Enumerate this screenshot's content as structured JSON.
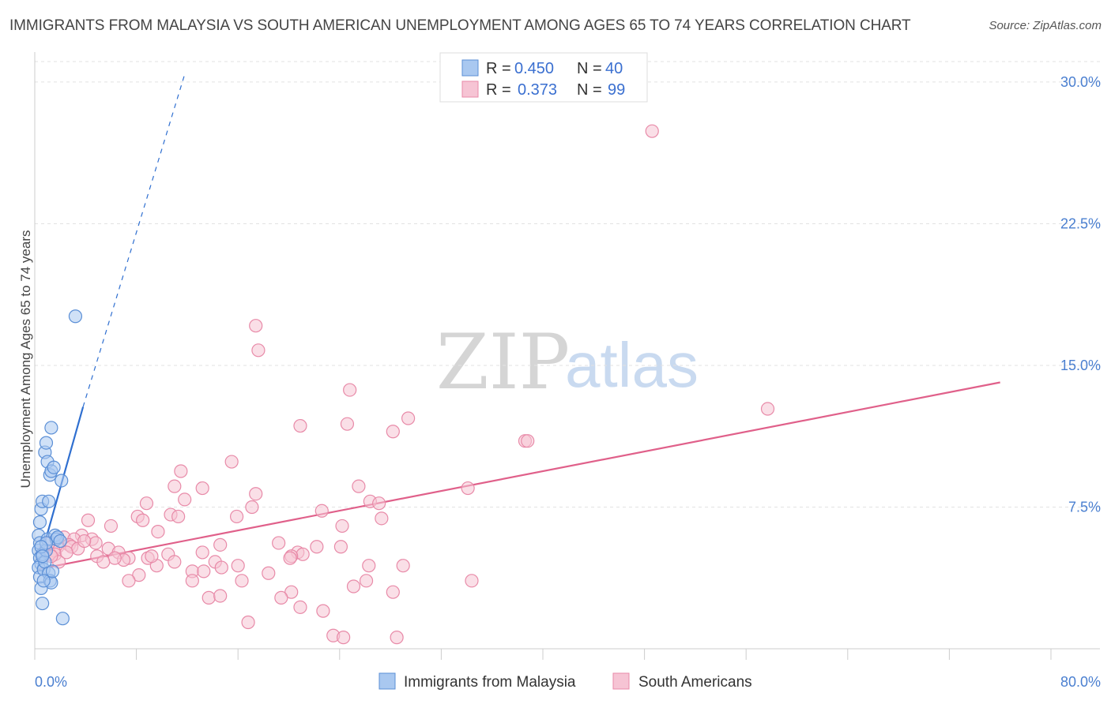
{
  "header": {
    "title": "IMMIGRANTS FROM MALAYSIA VS SOUTH AMERICAN UNEMPLOYMENT AMONG AGES 65 TO 74 YEARS CORRELATION CHART",
    "source": "Source: ZipAtlas.com"
  },
  "watermark": {
    "zip": "ZIP",
    "atlas": "atlas"
  },
  "legend": {
    "rows": [
      {
        "r_label": "R =",
        "r_value": "0.450",
        "n_label": "N =",
        "n_value": "40"
      },
      {
        "r_label": "R =",
        "r_value": "0.373",
        "n_label": "N =",
        "n_value": "99"
      }
    ]
  },
  "bottom_legend": {
    "items": [
      "Immigrants from Malaysia",
      "South Americans"
    ]
  },
  "colors": {
    "malaysia_fill": "#a9c8f0",
    "malaysia_stroke": "#5b8fd6",
    "malaysia_line": "#2f6fd0",
    "south_fill": "#f6c4d4",
    "south_stroke": "#e88aa8",
    "south_line": "#e0608a",
    "tick_color": "#4a7fd0",
    "grid": "#e2e2e2"
  },
  "chart_data": {
    "type": "scatter",
    "title": "IMMIGRANTS FROM MALAYSIA VS SOUTH AMERICAN UNEMPLOYMENT AMONG AGES 65 TO 74 YEARS CORRELATION CHART",
    "xlabel": "",
    "ylabel": "Unemployment Among Ages 65 to 74 years",
    "xlim": [
      0,
      80
    ],
    "ylim": [
      0,
      31
    ],
    "x_tick_labels": [
      "0.0%",
      "80.0%"
    ],
    "y_ticks": [
      7.5,
      15.0,
      22.5,
      30.0
    ],
    "y_tick_labels": [
      "7.5%",
      "15.0%",
      "22.5%",
      "30.0%"
    ],
    "grid": true,
    "series": [
      {
        "name": "Immigrants from Malaysia",
        "R": 0.45,
        "N": 40,
        "trend": {
          "solid": [
            [
              0.2,
              4.2
            ],
            [
              3.8,
              12.8
            ]
          ],
          "dashed": [
            [
              3.8,
              12.8
            ],
            [
              11.8,
              30.4
            ]
          ]
        },
        "points": [
          [
            0.3,
            5.2
          ],
          [
            0.4,
            4.8
          ],
          [
            0.5,
            4.5
          ],
          [
            0.6,
            5.0
          ],
          [
            0.3,
            4.3
          ],
          [
            0.4,
            3.8
          ],
          [
            0.5,
            3.2
          ],
          [
            0.6,
            2.4
          ],
          [
            0.3,
            6.0
          ],
          [
            0.4,
            6.7
          ],
          [
            0.5,
            7.4
          ],
          [
            0.6,
            7.8
          ],
          [
            0.4,
            5.6
          ],
          [
            0.7,
            4.2
          ],
          [
            0.8,
            4.6
          ],
          [
            0.9,
            5.2
          ],
          [
            1.0,
            5.8
          ],
          [
            1.1,
            4.0
          ],
          [
            1.2,
            3.6
          ],
          [
            1.3,
            3.5
          ],
          [
            1.4,
            4.1
          ],
          [
            0.8,
            10.4
          ],
          [
            0.9,
            10.9
          ],
          [
            1.0,
            9.9
          ],
          [
            1.2,
            9.2
          ],
          [
            1.3,
            9.4
          ],
          [
            1.5,
            9.6
          ],
          [
            1.3,
            11.7
          ],
          [
            1.6,
            6.0
          ],
          [
            1.7,
            5.8
          ],
          [
            2.1,
            8.9
          ],
          [
            2.2,
            1.6
          ],
          [
            3.2,
            17.6
          ],
          [
            0.9,
            5.6
          ],
          [
            0.7,
            3.6
          ],
          [
            0.5,
            5.4
          ],
          [
            1.8,
            5.9
          ],
          [
            2.0,
            5.7
          ],
          [
            0.6,
            4.9
          ],
          [
            1.1,
            7.8
          ]
        ]
      },
      {
        "name": "South Americans",
        "R": 0.373,
        "N": 99,
        "trend": {
          "solid": [
            [
              0.2,
              4.2
            ],
            [
              76.0,
              14.1
            ]
          ]
        },
        "points": [
          [
            48.6,
            27.4
          ],
          [
            17.4,
            17.1
          ],
          [
            17.6,
            15.8
          ],
          [
            24.8,
            13.7
          ],
          [
            29.4,
            12.2
          ],
          [
            57.7,
            12.7
          ],
          [
            24.6,
            11.9
          ],
          [
            20.9,
            11.8
          ],
          [
            28.2,
            11.5
          ],
          [
            38.6,
            11.0
          ],
          [
            38.8,
            11.0
          ],
          [
            15.5,
            9.9
          ],
          [
            11.5,
            9.4
          ],
          [
            11.0,
            8.6
          ],
          [
            13.2,
            8.5
          ],
          [
            25.5,
            8.6
          ],
          [
            34.1,
            8.5
          ],
          [
            17.4,
            8.2
          ],
          [
            11.8,
            7.9
          ],
          [
            8.8,
            7.7
          ],
          [
            26.4,
            7.8
          ],
          [
            27.1,
            7.7
          ],
          [
            17.1,
            7.5
          ],
          [
            22.6,
            7.3
          ],
          [
            10.7,
            7.1
          ],
          [
            11.3,
            7.0
          ],
          [
            8.1,
            7.0
          ],
          [
            15.9,
            7.0
          ],
          [
            27.3,
            6.9
          ],
          [
            8.5,
            6.8
          ],
          [
            4.2,
            6.8
          ],
          [
            6.0,
            6.5
          ],
          [
            24.2,
            6.5
          ],
          [
            9.7,
            6.2
          ],
          [
            3.7,
            6.0
          ],
          [
            2.3,
            5.9
          ],
          [
            3.1,
            5.8
          ],
          [
            4.5,
            5.8
          ],
          [
            19.2,
            5.6
          ],
          [
            14.6,
            5.5
          ],
          [
            22.2,
            5.4
          ],
          [
            24.1,
            5.4
          ],
          [
            4.8,
            5.6
          ],
          [
            2.7,
            5.5
          ],
          [
            1.8,
            5.4
          ],
          [
            2.9,
            5.4
          ],
          [
            3.4,
            5.3
          ],
          [
            1.5,
            5.2
          ],
          [
            1.2,
            5.0
          ],
          [
            1.6,
            5.0
          ],
          [
            5.8,
            5.3
          ],
          [
            6.6,
            5.1
          ],
          [
            10.5,
            5.0
          ],
          [
            13.2,
            5.1
          ],
          [
            20.7,
            5.1
          ],
          [
            21.1,
            5.0
          ],
          [
            20.2,
            4.9
          ],
          [
            20.1,
            4.8
          ],
          [
            7.4,
            4.8
          ],
          [
            7.0,
            4.7
          ],
          [
            4.9,
            4.9
          ],
          [
            8.9,
            4.8
          ],
          [
            1.9,
            4.6
          ],
          [
            11.0,
            4.6
          ],
          [
            14.2,
            4.6
          ],
          [
            26.3,
            4.4
          ],
          [
            16.0,
            4.4
          ],
          [
            29.0,
            4.4
          ],
          [
            14.7,
            4.3
          ],
          [
            9.6,
            4.4
          ],
          [
            12.4,
            4.1
          ],
          [
            13.3,
            4.1
          ],
          [
            18.4,
            4.0
          ],
          [
            8.2,
            3.9
          ],
          [
            16.3,
            3.6
          ],
          [
            12.4,
            3.6
          ],
          [
            26.1,
            3.6
          ],
          [
            25.1,
            3.3
          ],
          [
            34.4,
            3.6
          ],
          [
            7.4,
            3.6
          ],
          [
            13.7,
            2.7
          ],
          [
            14.6,
            2.8
          ],
          [
            20.2,
            3.0
          ],
          [
            28.2,
            3.0
          ],
          [
            19.4,
            2.7
          ],
          [
            20.9,
            2.2
          ],
          [
            22.7,
            2.0
          ],
          [
            16.8,
            1.4
          ],
          [
            23.5,
            0.7
          ],
          [
            24.3,
            0.6
          ],
          [
            28.5,
            0.6
          ],
          [
            0.8,
            5.2
          ],
          [
            1.1,
            5.6
          ],
          [
            1.3,
            4.9
          ],
          [
            3.9,
            5.7
          ],
          [
            6.3,
            4.8
          ],
          [
            5.4,
            4.6
          ],
          [
            9.2,
            4.9
          ],
          [
            2.5,
            5.1
          ]
        ]
      }
    ]
  }
}
